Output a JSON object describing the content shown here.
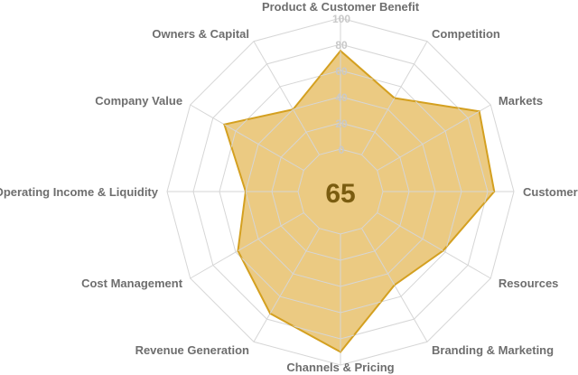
{
  "chart_data": {
    "type": "radar",
    "title": "",
    "center_label": "65",
    "categories": [
      "Product & Customer Benefit",
      "Competition",
      "Markets",
      "Customers",
      "Resources",
      "Branding & Marketing",
      "Channels & Pricing",
      "Revenue Generation",
      "Cost Management",
      "Operating Income & Liquidity",
      "Company Value",
      "Owners & Capital"
    ],
    "series": [
      {
        "name": "Score",
        "values": [
          75,
          50,
          90,
          85,
          58,
          50,
          90,
          75,
          58,
          40,
          70,
          40
        ]
      }
    ],
    "scale_ticks": [
      "0",
      "20",
      "40",
      "60",
      "80",
      "100"
    ],
    "rlim": [
      0,
      100
    ],
    "grid": true,
    "legend": "none"
  },
  "colors": {
    "fill": "#e9c677",
    "fill_opacity": 0.92,
    "stroke": "#d4a020",
    "grid": "#d6d6d6",
    "label": "#6e6e6e",
    "scale_label": "#c9c9c9",
    "center_text": "#7a5c10"
  }
}
